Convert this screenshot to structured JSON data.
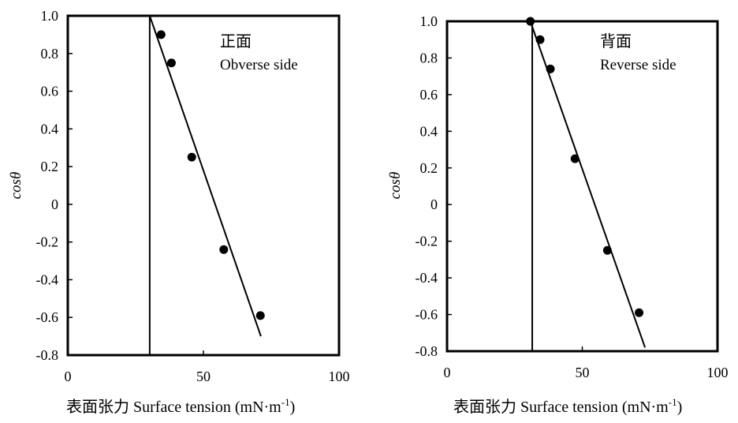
{
  "chart_data": [
    {
      "type": "scatter",
      "panel": "left",
      "annotation_cn": "正面",
      "annotation_en": "Obverse side",
      "xlabel": "表面张力 Surface tension (mN·m",
      "xlabel_sup": "-1",
      "xlabel_close": ")",
      "ylabel": "cosθ",
      "xlim": [
        0,
        100
      ],
      "ylim": [
        -0.8,
        1.0
      ],
      "x_ticks": [
        "0",
        "50",
        "100"
      ],
      "y_ticks": [
        "1.0",
        "0.8",
        "0.6",
        "0.4",
        "0.2",
        "0",
        "-0.2",
        "-0.4",
        "-0.6",
        "-0.8"
      ],
      "grid": false,
      "points": [
        {
          "x": 34.4,
          "y": 0.9
        },
        {
          "x": 38.2,
          "y": 0.75
        },
        {
          "x": 45.7,
          "y": 0.25
        },
        {
          "x": 57.5,
          "y": -0.24
        },
        {
          "x": 71.0,
          "y": -0.59
        }
      ],
      "fit_line": [
        {
          "x": 30.2,
          "y": 1.0
        },
        {
          "x": 71.2,
          "y": -0.7
        }
      ],
      "critical_line": {
        "x": 30.2,
        "y_from": -0.8,
        "y_to": 1.0
      }
    },
    {
      "type": "scatter",
      "panel": "right",
      "annotation_cn": "背面",
      "annotation_en": "Reverse side",
      "xlabel": "表面张力 Surface tension (mN·m",
      "xlabel_sup": "-1",
      "xlabel_close": ")",
      "ylabel": "cosθ",
      "xlim": [
        0,
        100
      ],
      "ylim": [
        -0.8,
        1.0
      ],
      "x_ticks": [
        "0",
        "50",
        "100"
      ],
      "y_ticks": [
        "1.0",
        "0.8",
        "0.6",
        "0.4",
        "0.2",
        "0",
        "-0.2",
        "-0.4",
        "-0.6",
        "-0.8"
      ],
      "grid": false,
      "points": [
        {
          "x": 30.8,
          "y": 1.0
        },
        {
          "x": 34.4,
          "y": 0.9
        },
        {
          "x": 38.2,
          "y": 0.74
        },
        {
          "x": 47.3,
          "y": 0.25
        },
        {
          "x": 59.3,
          "y": -0.25
        },
        {
          "x": 71.0,
          "y": -0.59
        }
      ],
      "fit_line": [
        {
          "x": 30.8,
          "y": 1.0
        },
        {
          "x": 73.2,
          "y": -0.78
        }
      ],
      "critical_line": {
        "x": 31.5,
        "y_from": -0.8,
        "y_to": 1.0
      }
    }
  ]
}
